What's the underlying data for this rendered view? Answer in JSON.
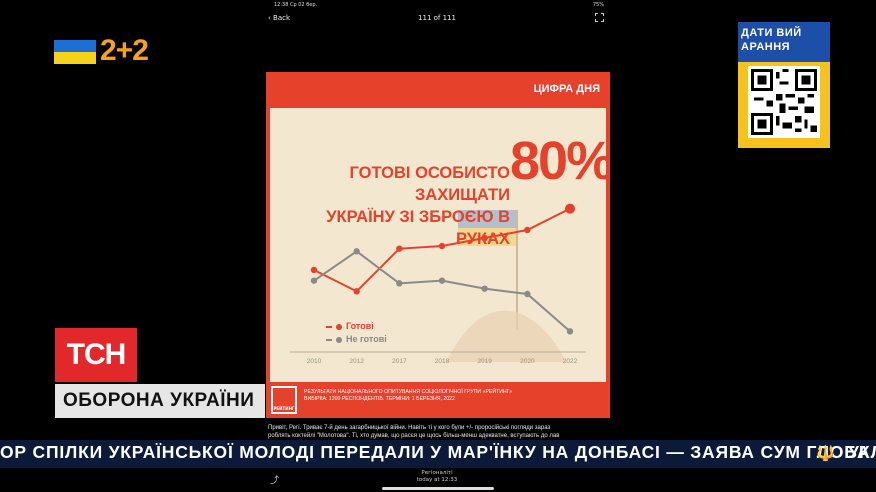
{
  "status_bar": {
    "left": "12:38  Ср 02 бер.",
    "right": "75%"
  },
  "nav": {
    "back_label": "Back",
    "counter": "111 of 111"
  },
  "channel": {
    "logo_text": "2+2"
  },
  "qr_block": {
    "header": "ДАТИ ВИЙ АРАННЯ"
  },
  "card": {
    "header": "ЦИФРА ДНЯ",
    "headline_line1": "ГОТОВІ ОСОБИСТО ЗАХИЩАТИ",
    "headline_line2": "УКРАЇНУ ЗІ ЗБРОЄЮ В РУКАХ",
    "big_number": "80%",
    "legend": [
      {
        "label": "Готові",
        "color": "#e5412b"
      },
      {
        "label": "Не готові",
        "color": "#8a8a8a"
      }
    ],
    "source_line1": "РЕЗУЛЬТАТИ НАЦІОНАЛЬНОГО ОПИТУВАННЯ СОЦІОЛОГІЧНОЇ ГРУПИ «РЕЙТИНГ»",
    "source_line2": "ВИБІРКА: 1200 РЕСПОНДЕНТІВ. ТЕРМІНИ: 1 БЕРЕЗНЯ, 2022",
    "source_logo": "РЕЙТИНГ"
  },
  "chart_data": {
    "type": "line",
    "categories": [
      "2010",
      "2012",
      "2017",
      "2018",
      "2019",
      "2020",
      "2022"
    ],
    "series": [
      {
        "name": "Готові",
        "color": "#e5412b",
        "values": [
          57,
          49,
          65,
          66,
          69,
          72,
          80
        ]
      },
      {
        "name": "Не готові",
        "color": "#8a8a8a",
        "values": [
          53,
          64,
          52,
          53,
          50,
          48,
          34
        ]
      }
    ],
    "ylim": [
      30,
      90
    ],
    "grid": false,
    "legend_position": "bottom-left"
  },
  "caption": {
    "line1": "Привіт, Регі. Триває 7-й день загарбницької війни. Навіть ті у кого були +/- проросійські погляди зараз",
    "line2": "роблять коктейлі \"Молотова\". Ті, хто думав, що расєя це щось більш-менш адекватне, вступають до лав"
  },
  "tsn_logo": "ТСН",
  "section_title": "ОБОРОНА УКРАЇНИ",
  "ticker": {
    "text": "ОР СПІЛКИ УКРАЇНСЬКОЇ МОЛОДІ ПЕРЕДАЛИ У МАР'ЇНКУ НА ДОНБАСІ — ЗАЯВА СУМ ГЛОБАЛ",
    "trident": "🔱",
    "next": "УК"
  },
  "footer": {
    "site": "Регіоналіті",
    "time": "today at 12:33"
  }
}
